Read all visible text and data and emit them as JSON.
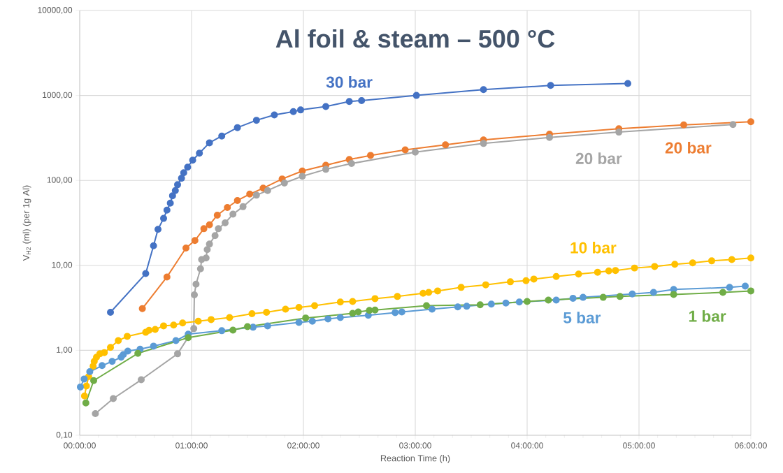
{
  "chart_data": {
    "type": "line",
    "title": "Al foil & steam – 500 °C",
    "xlabel": "Reaction Time (h)",
    "ylabel": "V$_{H2}$ (ml) (per 1g Al)",
    "xlim": [
      0,
      6
    ],
    "ylim": [
      0.1,
      10000
    ],
    "log": "y",
    "grid": true,
    "legend": false,
    "marker": "circle",
    "line_style": "solid",
    "xticks": [
      {
        "value": 0,
        "label": "00:00:00"
      },
      {
        "value": 1,
        "label": "01:00:00"
      },
      {
        "value": 2,
        "label": "02:00:00"
      },
      {
        "value": 3,
        "label": "03:00:00"
      },
      {
        "value": 4,
        "label": "04:00:00"
      },
      {
        "value": 5,
        "label": "05:00:00"
      },
      {
        "value": 6,
        "label": "06:00:00"
      }
    ],
    "yticks": [
      {
        "value": 0.1,
        "label": "0,10"
      },
      {
        "value": 1,
        "label": "1,00"
      },
      {
        "value": 10,
        "label": "10,00"
      },
      {
        "value": 100,
        "label": "100,00"
      },
      {
        "value": 1000,
        "label": "1000,00"
      },
      {
        "value": 10000,
        "label": "10000,00"
      }
    ],
    "series": [
      {
        "name": "30 bar",
        "color": "#4472c4",
        "x": [
          0.275,
          0.59,
          0.66,
          0.7,
          0.75,
          0.78,
          0.81,
          0.83,
          0.855,
          0.875,
          0.91,
          0.93,
          0.965,
          1.01,
          1.07,
          1.16,
          1.27,
          1.41,
          1.58,
          1.74,
          1.91,
          1.975,
          2.2,
          2.41,
          2.52,
          3.01,
          3.61,
          4.21,
          4.9
        ],
        "values": [
          2.8,
          8.0,
          17,
          26.5,
          35.7,
          44.6,
          54,
          66,
          76,
          89,
          106,
          123,
          143,
          173,
          209,
          277,
          333,
          418,
          510,
          590,
          645,
          675,
          740,
          850,
          870,
          1000,
          1170,
          1310,
          1380
        ]
      },
      {
        "name": "20 bar",
        "color": "#ed7d31",
        "x": [
          0.56,
          0.78,
          0.95,
          1.03,
          1.11,
          1.16,
          1.23,
          1.32,
          1.41,
          1.52,
          1.64,
          1.81,
          1.99,
          2.2,
          2.41,
          2.6,
          2.91,
          3.27,
          3.61,
          4.2,
          4.82,
          5.4,
          6.0
        ],
        "values": [
          3.1,
          7.3,
          16,
          19.6,
          27,
          30,
          39,
          48,
          58,
          69,
          81,
          104,
          129,
          151,
          176,
          197,
          229,
          262,
          299,
          350,
          406,
          450,
          490
        ]
      },
      {
        "name": "20 bar",
        "color": "#a5a5a5",
        "x": [
          0.14,
          0.3,
          0.55,
          0.875,
          1.02,
          1.025,
          1.04,
          1.08,
          1.09,
          1.13,
          1.14,
          1.16,
          1.21,
          1.24,
          1.3,
          1.37,
          1.46,
          1.58,
          1.68,
          1.83,
          1.99,
          2.2,
          2.43,
          3.0,
          3.61,
          4.2,
          4.82,
          5.84
        ],
        "values": [
          0.18,
          0.27,
          0.45,
          0.91,
          1.8,
          4.5,
          6.0,
          9.1,
          11.7,
          12.2,
          15.3,
          17.8,
          22.4,
          27,
          31.6,
          40,
          49,
          67,
          76,
          93,
          112,
          135,
          158,
          215,
          272,
          320,
          370,
          455
        ]
      },
      {
        "name": "10 bar",
        "color": "#ffc000",
        "x": [
          0.043,
          0.06,
          0.08,
          0.12,
          0.13,
          0.15,
          0.18,
          0.22,
          0.275,
          0.345,
          0.425,
          0.59,
          0.62,
          0.675,
          0.75,
          0.84,
          0.92,
          1.06,
          1.175,
          1.34,
          1.54,
          1.67,
          1.84,
          1.96,
          2.1,
          2.33,
          2.44,
          2.64,
          2.84,
          3.07,
          3.12,
          3.2,
          3.41,
          3.63,
          3.85,
          3.99,
          4.06,
          4.26,
          4.46,
          4.63,
          4.73,
          4.79,
          4.96,
          5.14,
          5.32,
          5.48,
          5.65,
          5.83,
          6.0
        ],
        "values": [
          0.29,
          0.38,
          0.49,
          0.65,
          0.74,
          0.83,
          0.91,
          0.94,
          1.08,
          1.3,
          1.46,
          1.63,
          1.72,
          1.76,
          1.94,
          1.98,
          2.1,
          2.2,
          2.3,
          2.43,
          2.7,
          2.8,
          3.05,
          3.2,
          3.35,
          3.7,
          3.76,
          4.06,
          4.3,
          4.7,
          4.8,
          5.0,
          5.5,
          5.9,
          6.4,
          6.6,
          6.9,
          7.4,
          7.9,
          8.3,
          8.6,
          8.7,
          9.3,
          9.7,
          10.3,
          10.7,
          11.3,
          11.7,
          12.2
        ]
      },
      {
        "name": "5 bar",
        "color": "#5b9bd5",
        "x": [
          0.006,
          0.04,
          0.09,
          0.2,
          0.29,
          0.37,
          0.39,
          0.43,
          0.54,
          0.66,
          0.86,
          0.97,
          1.27,
          1.55,
          1.68,
          1.96,
          2.08,
          2.22,
          2.33,
          2.58,
          2.82,
          2.88,
          3.15,
          3.38,
          3.46,
          3.68,
          3.81,
          3.93,
          4.26,
          4.41,
          4.5,
          4.94,
          5.13,
          5.31,
          5.81,
          5.95
        ],
        "values": [
          0.37,
          0.46,
          0.56,
          0.66,
          0.74,
          0.83,
          0.89,
          0.98,
          1.03,
          1.12,
          1.3,
          1.55,
          1.7,
          1.87,
          1.94,
          2.13,
          2.2,
          2.34,
          2.43,
          2.58,
          2.78,
          2.83,
          3.05,
          3.24,
          3.3,
          3.5,
          3.6,
          3.7,
          3.9,
          4.1,
          4.2,
          4.6,
          4.8,
          5.2,
          5.5,
          5.7
        ]
      },
      {
        "name": "1 bar",
        "color": "#70ad47",
        "x": [
          0.055,
          0.125,
          0.52,
          0.97,
          1.37,
          1.5,
          2.02,
          2.44,
          2.49,
          2.59,
          2.64,
          3.1,
          3.58,
          4.0,
          4.19,
          4.68,
          4.83,
          5.31,
          5.75,
          6.0
        ],
        "values": [
          0.24,
          0.44,
          0.92,
          1.41,
          1.73,
          1.9,
          2.4,
          2.72,
          2.83,
          2.95,
          2.98,
          3.35,
          3.43,
          3.76,
          3.9,
          4.2,
          4.3,
          4.55,
          4.8,
          5.0
        ]
      }
    ]
  }
}
